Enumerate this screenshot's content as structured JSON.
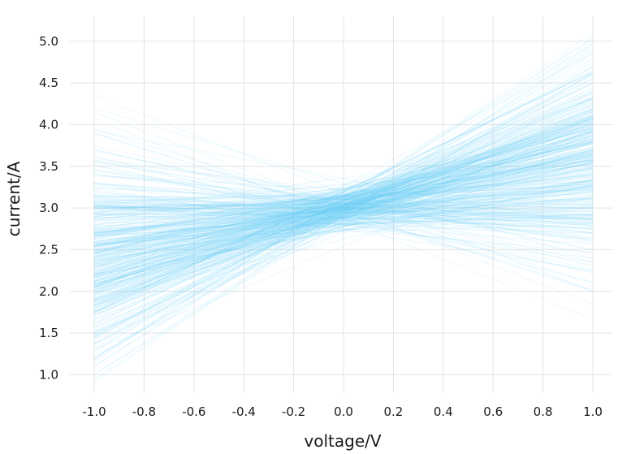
{
  "chart_data": {
    "type": "line",
    "title": "",
    "xlabel": "voltage/V",
    "ylabel": "current/A",
    "xlim": [
      -1.0,
      1.0
    ],
    "ylim": [
      0.78,
      5.3
    ],
    "x_ticks": [
      "-1.0",
      "-0.8",
      "-0.6",
      "-0.4",
      "-0.2",
      "0.0",
      "0.2",
      "0.4",
      "0.6",
      "0.8",
      "1.0"
    ],
    "y_ticks": [
      "1.0",
      "1.5",
      "2.0",
      "2.5",
      "3.0",
      "3.5",
      "4.0",
      "4.5",
      "5.0"
    ],
    "grid": true,
    "legend": "none",
    "line_color": "#6ecff6",
    "line_opacity": 0.13,
    "series_description": "400 straight lines y = a + b*x sampled from a posterior distribution",
    "series_count": 400,
    "x": [
      -1.0,
      1.0
    ],
    "series": [
      {
        "values": [
          1.0,
          4.85
        ]
      },
      {
        "values": [
          1.15,
          5.1
        ]
      },
      {
        "values": [
          1.3,
          4.6
        ]
      },
      {
        "values": [
          1.45,
          4.7
        ]
      },
      {
        "values": [
          1.6,
          4.5
        ]
      },
      {
        "values": [
          1.75,
          4.4
        ]
      },
      {
        "values": [
          1.9,
          4.2
        ]
      },
      {
        "values": [
          2.05,
          4.1
        ]
      },
      {
        "values": [
          2.2,
          4.0
        ]
      },
      {
        "values": [
          2.35,
          3.95
        ]
      },
      {
        "values": [
          2.5,
          3.8
        ]
      },
      {
        "values": [
          2.65,
          3.65
        ]
      },
      {
        "values": [
          2.8,
          3.4
        ]
      },
      {
        "values": [
          2.95,
          3.2
        ]
      },
      {
        "values": [
          3.1,
          3.0
        ]
      },
      {
        "values": [
          3.25,
          2.85
        ]
      },
      {
        "values": [
          3.45,
          2.6
        ]
      },
      {
        "values": [
          3.7,
          2.35
        ]
      },
      {
        "values": [
          3.95,
          2.1
        ]
      },
      {
        "values": [
          4.15,
          1.85
        ]
      },
      {
        "values": [
          4.35,
          2.0
        ]
      },
      {
        "values": [
          3.2,
          2.4
        ]
      },
      {
        "values": [
          2.0,
          3.9
        ]
      },
      {
        "values": [
          2.6,
          3.3
        ]
      }
    ]
  }
}
